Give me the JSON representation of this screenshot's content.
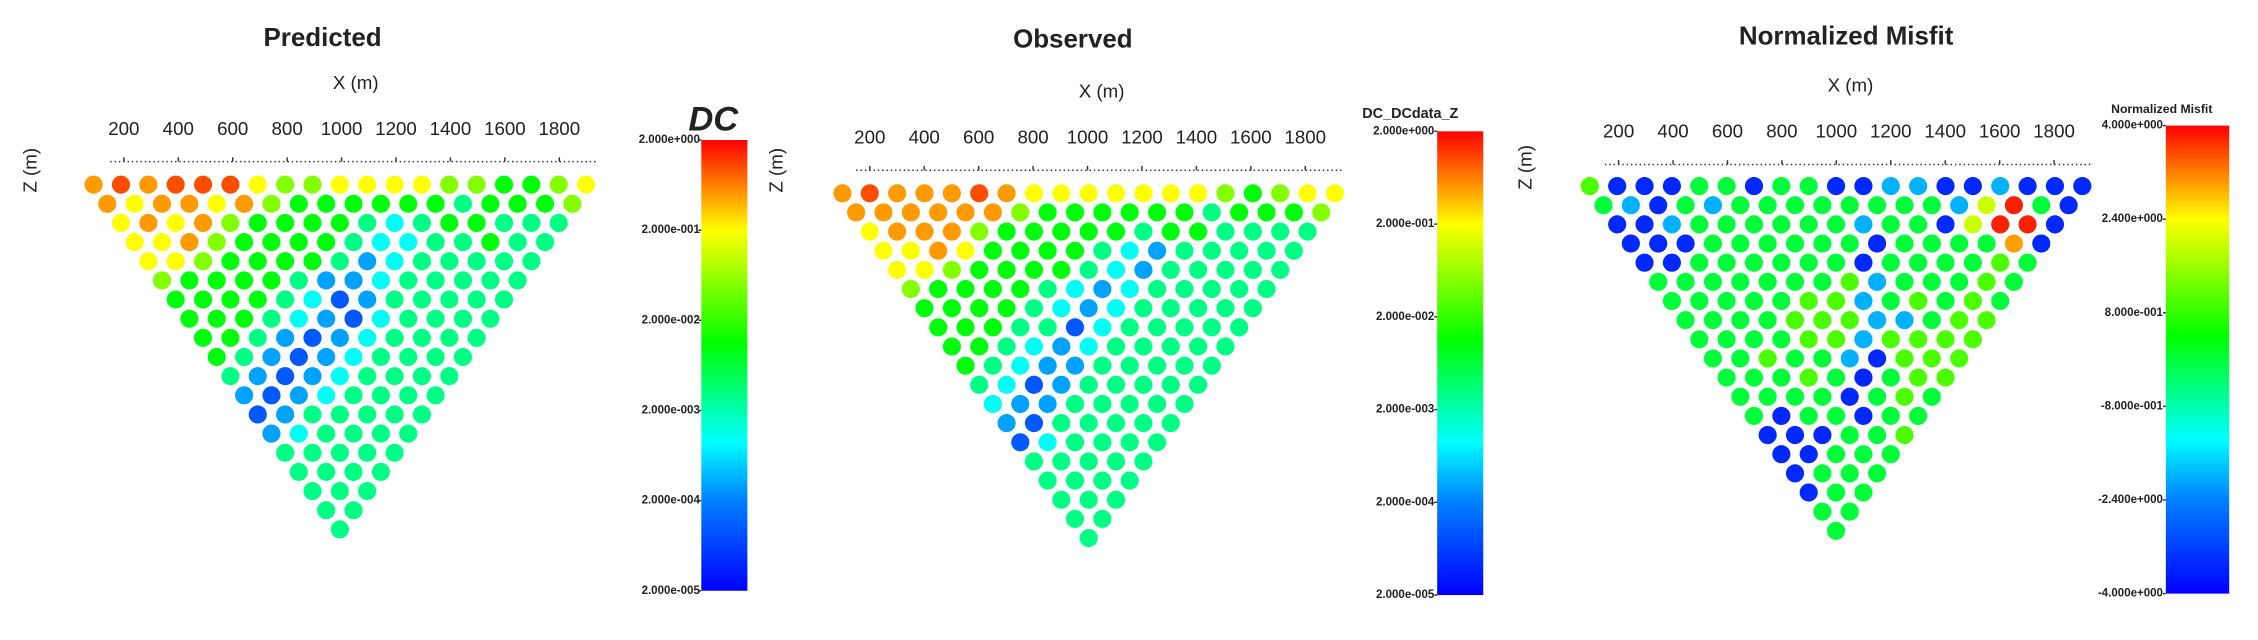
{
  "chart_data": [
    {
      "type": "pseudosection",
      "title": "Predicted",
      "xlabel": "X (m)",
      "ylabel": "Z (m)",
      "xlim": [
        150,
        1940
      ],
      "xticks": [
        200,
        400,
        600,
        800,
        1000,
        1200,
        1400,
        1600,
        1800
      ],
      "colorbar_label": "DC",
      "log_color": true,
      "clim": [
        2e-05,
        2
      ],
      "cticks": [
        {
          "value": 2,
          "label": "2.000e+000"
        },
        {
          "value": 0.2,
          "label": "2.000e-001"
        },
        {
          "value": 0.02,
          "label": "2.000e-002"
        },
        {
          "value": 0.002,
          "label": "2.000e-003"
        },
        {
          "value": 0.0002,
          "label": "2.000e-004"
        },
        {
          "value": 2e-05,
          "label": "2.000e-005"
        }
      ],
      "values": [
        [
          0.5,
          1,
          0.5,
          1,
          1,
          1,
          0.2,
          0.05,
          0.05,
          0.2,
          0.2,
          0.2,
          0.2,
          0.05,
          0.05,
          0.01,
          0.01,
          0.05,
          0.2
        ],
        [
          0.5,
          0.2,
          0.5,
          0.5,
          0.2,
          0.5,
          0.05,
          0.01,
          0.01,
          0.01,
          0.01,
          0.01,
          0.01,
          0.003,
          0.01,
          0.01,
          0.01,
          0.05
        ],
        [
          0.2,
          0.5,
          0.2,
          0.5,
          0.05,
          0.01,
          0.01,
          0.01,
          0.01,
          0.003,
          0.001,
          0.003,
          0.01,
          0.01,
          0.003,
          0.003,
          0.003
        ],
        [
          0.2,
          0.2,
          0.5,
          0.05,
          0.01,
          0.01,
          0.01,
          0.01,
          0.003,
          0.001,
          0.001,
          0.003,
          0.003,
          0.01,
          0.003,
          0.003
        ],
        [
          0.2,
          0.2,
          0.05,
          0.01,
          0.01,
          0.01,
          0.01,
          0.003,
          0.0003,
          0.001,
          0.003,
          0.003,
          0.003,
          0.003,
          0.003
        ],
        [
          0.05,
          0.01,
          0.01,
          0.01,
          0.01,
          0.003,
          0.0003,
          0.0003,
          0.001,
          0.003,
          0.003,
          0.003,
          0.003,
          0.003
        ],
        [
          0.01,
          0.01,
          0.01,
          0.01,
          0.003,
          0.001,
          0.0001,
          0.0003,
          0.003,
          0.003,
          0.003,
          0.003,
          0.003
        ],
        [
          0.01,
          0.01,
          0.01,
          0.003,
          0.001,
          0.0003,
          0.0001,
          0.001,
          0.003,
          0.003,
          0.003,
          0.003
        ],
        [
          0.01,
          0.01,
          0.003,
          0.0003,
          0.0001,
          0.0003,
          0.001,
          0.003,
          0.003,
          0.003,
          0.003
        ],
        [
          0.01,
          0.003,
          0.0003,
          0.0001,
          0.0003,
          0.001,
          0.003,
          0.003,
          0.003,
          0.003
        ],
        [
          0.003,
          0.0003,
          0.0001,
          0.0003,
          0.001,
          0.003,
          0.003,
          0.003,
          0.003
        ],
        [
          0.0003,
          0.0001,
          0.0003,
          0.001,
          0.003,
          0.003,
          0.003,
          0.003
        ],
        [
          0.0001,
          0.0003,
          0.003,
          0.003,
          0.003,
          0.003,
          0.003
        ],
        [
          0.0003,
          0.001,
          0.003,
          0.003,
          0.003,
          0.003
        ],
        [
          0.003,
          0.003,
          0.003,
          0.003,
          0.003
        ],
        [
          0.003,
          0.003,
          0.003,
          0.003
        ],
        [
          0.003,
          0.003,
          0.003
        ],
        [
          0.003,
          0.003
        ],
        [
          0.003
        ]
      ]
    },
    {
      "type": "pseudosection",
      "title": "Observed",
      "xlabel": "X (m)",
      "ylabel": "Z (m)",
      "xlim": [
        150,
        1940
      ],
      "xticks": [
        200,
        400,
        600,
        800,
        1000,
        1200,
        1400,
        1600,
        1800
      ],
      "colorbar_label": "DC_DCdata_Z",
      "log_color": true,
      "clim": [
        2e-05,
        2
      ],
      "cticks": [
        {
          "value": 2,
          "label": "2.000e+000"
        },
        {
          "value": 0.2,
          "label": "2.000e-001"
        },
        {
          "value": 0.02,
          "label": "2.000e-002"
        },
        {
          "value": 0.002,
          "label": "2.000e-003"
        },
        {
          "value": 0.0002,
          "label": "2.000e-004"
        },
        {
          "value": 2e-05,
          "label": "2.000e-005"
        }
      ],
      "values": [
        [
          0.5,
          1,
          0.5,
          0.5,
          0.5,
          1,
          0.5,
          0.2,
          0.2,
          0.2,
          0.2,
          0.2,
          0.2,
          0.2,
          0.05,
          0.01,
          0.05,
          0.2,
          0.2
        ],
        [
          0.5,
          0.5,
          0.5,
          0.5,
          0.5,
          0.5,
          0.05,
          0.01,
          0.01,
          0.01,
          0.01,
          0.01,
          0.01,
          0.003,
          0.01,
          0.01,
          0.01,
          0.05
        ],
        [
          0.2,
          0.5,
          0.5,
          0.5,
          0.05,
          0.01,
          0.01,
          0.01,
          0.01,
          0.01,
          0.003,
          0.01,
          0.01,
          0.003,
          0.003,
          0.003,
          0.003
        ],
        [
          0.2,
          0.2,
          0.5,
          0.2,
          0.01,
          0.01,
          0.01,
          0.01,
          0.003,
          0.001,
          0.0003,
          0.003,
          0.003,
          0.003,
          0.003,
          0.003
        ],
        [
          0.2,
          0.2,
          0.05,
          0.01,
          0.01,
          0.01,
          0.01,
          0.003,
          0.001,
          0.0003,
          0.003,
          0.003,
          0.003,
          0.003,
          0.003
        ],
        [
          0.05,
          0.01,
          0.01,
          0.01,
          0.01,
          0.003,
          0.001,
          0.0003,
          0.001,
          0.003,
          0.003,
          0.003,
          0.003,
          0.003
        ],
        [
          0.01,
          0.01,
          0.01,
          0.01,
          0.003,
          0.001,
          0.0003,
          0.001,
          0.003,
          0.003,
          0.003,
          0.003,
          0.003
        ],
        [
          0.01,
          0.01,
          0.01,
          0.003,
          0.003,
          0.0001,
          0.001,
          0.003,
          0.003,
          0.003,
          0.003,
          0.003
        ],
        [
          0.01,
          0.01,
          0.003,
          0.001,
          0.0003,
          0.001,
          0.003,
          0.003,
          0.003,
          0.003,
          0.003
        ],
        [
          0.01,
          0.003,
          0.001,
          0.0003,
          0.0003,
          0.003,
          0.003,
          0.003,
          0.003,
          0.003
        ],
        [
          0.003,
          0.001,
          0.0001,
          0.0003,
          0.003,
          0.003,
          0.003,
          0.003,
          0.003
        ],
        [
          0.001,
          0.0003,
          0.0003,
          0.003,
          0.003,
          0.003,
          0.003,
          0.003
        ],
        [
          0.0003,
          0.0001,
          0.003,
          0.003,
          0.003,
          0.003,
          0.003
        ],
        [
          0.0001,
          0.001,
          0.003,
          0.003,
          0.003,
          0.003
        ],
        [
          0.003,
          0.003,
          0.003,
          0.003,
          0.003
        ],
        [
          0.003,
          0.003,
          0.003,
          0.003
        ],
        [
          0.003,
          0.003,
          0.003
        ],
        [
          0.003,
          0.003
        ],
        [
          0.003
        ]
      ]
    },
    {
      "type": "pseudosection",
      "title": "Normalized Misfit",
      "xlabel": "X (m)",
      "ylabel": "Z (m)",
      "xlim": [
        150,
        1940
      ],
      "xticks": [
        200,
        400,
        600,
        800,
        1000,
        1200,
        1400,
        1600,
        1800
      ],
      "colorbar_label": "Normalized Misfit",
      "log_color": false,
      "clim": [
        -4,
        4
      ],
      "cticks": [
        {
          "value": 4,
          "label": "4.000e+000"
        },
        {
          "value": 2.4,
          "label": "2.400e+000"
        },
        {
          "value": 0.8,
          "label": "8.000e-001"
        },
        {
          "value": -0.8,
          "label": "-8.000e-001"
        },
        {
          "value": -2.4,
          "label": "-2.400e+000"
        },
        {
          "value": -4,
          "label": "-4.000e+000"
        }
      ],
      "values": [
        [
          1,
          -3.5,
          -3.5,
          -3.5,
          0,
          0,
          -3.5,
          0,
          0,
          -3.5,
          -3.5,
          -2,
          -2,
          -3.5,
          -3.5,
          -2,
          -3.5,
          -3.5,
          -3.5
        ],
        [
          0,
          -2,
          -3.5,
          0,
          -2,
          0,
          0,
          0,
          0,
          0,
          0,
          0,
          0,
          -2,
          2,
          3.8,
          0,
          -3.5
        ],
        [
          -3.5,
          -3.5,
          -2,
          0,
          0,
          0,
          0,
          0,
          0,
          -2,
          0,
          0,
          -3.5,
          2,
          3.8,
          3.8,
          -3.5
        ],
        [
          -3.5,
          -3.5,
          -3.5,
          0,
          0,
          0,
          0,
          0,
          0,
          -3.5,
          0,
          0,
          0,
          0,
          3,
          -3.5
        ],
        [
          -3.5,
          -3.5,
          0,
          0,
          0,
          0,
          0,
          0,
          -3.5,
          0,
          0,
          0,
          0,
          1,
          0
        ],
        [
          0,
          0,
          0,
          0,
          0,
          0,
          0,
          1,
          -2,
          0,
          0,
          0,
          1,
          0
        ],
        [
          0,
          0,
          0,
          0,
          0,
          1,
          1,
          -2,
          0,
          1,
          0,
          1,
          0
        ],
        [
          0,
          0,
          0,
          0,
          1,
          1,
          1,
          -2,
          -2,
          0,
          1,
          1
        ],
        [
          0,
          0,
          0,
          0,
          1,
          1,
          -2,
          1,
          1,
          1,
          1
        ],
        [
          0,
          0,
          1,
          0,
          0,
          -2,
          -3.5,
          1,
          1,
          1
        ],
        [
          0,
          0,
          0,
          1,
          0,
          -3.5,
          0,
          1,
          1
        ],
        [
          0,
          0,
          0,
          0,
          -3.5,
          0,
          1,
          0
        ],
        [
          0,
          -3.5,
          0,
          0,
          -3.5,
          0,
          0
        ],
        [
          -3.5,
          -3.5,
          -3.5,
          0,
          0,
          1
        ],
        [
          -3.5,
          -3.5,
          0,
          0,
          0
        ],
        [
          -3.5,
          0,
          0,
          0
        ],
        [
          -3.5,
          0,
          0
        ],
        [
          0,
          0
        ],
        [
          0
        ]
      ]
    }
  ]
}
